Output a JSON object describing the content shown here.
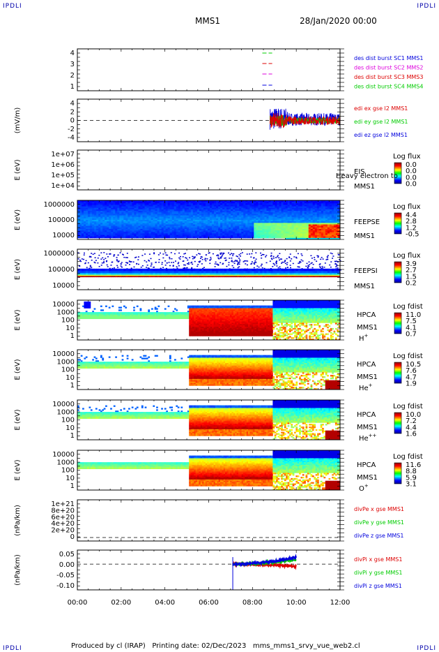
{
  "corner_label": "IPDLI",
  "title": "MMS1",
  "date": "28/Jan/2020 00:00",
  "footer": "Produced by cl (IRAP)   Printing date: 02/Dec/2023   mms_mms1_srvy_vue_web2.cl",
  "x_ticks": [
    "00:00",
    "02:00",
    "04:00",
    "06:00",
    "08:00",
    "10:00",
    "12:00"
  ],
  "panels": [
    {
      "type": "timeline",
      "yticks": [
        "4",
        "3",
        "2",
        "1"
      ],
      "legend": [
        {
          "text": "des dist burst SC1 MMS1",
          "color": "#0000dd"
        },
        {
          "text": "des dist burst SC2 MMS2",
          "color": "#dd00dd"
        },
        {
          "text": "des dist burst SC3 MMS3",
          "color": "#dd0000"
        },
        {
          "text": "des dist burst SC4 MMS4",
          "color": "#00cc00"
        }
      ]
    },
    {
      "type": "line",
      "ylabel": "(mV/m)",
      "yticks": [
        "4",
        "2",
        "0",
        "-2",
        "-4"
      ],
      "ylim": [
        -4,
        4
      ],
      "legend": [
        {
          "text": "edi ex gse l2 MMS1",
          "color": "#dd0000"
        },
        {
          "text": "edi ey gse l2 MMS1",
          "color": "#00cc00"
        },
        {
          "text": "edi ez gse l2 MMS1",
          "color": "#0000dd"
        }
      ]
    },
    {
      "type": "spectrogram",
      "ylabel": "E (eV)",
      "yticks": [
        "1e+07",
        "1e+06",
        "1e+05",
        "1e+04"
      ],
      "labels": [
        "EIS",
        "MMS1"
      ],
      "overlay": "Heavy electron to",
      "cbar_title": "Log flux",
      "cbar_ticks": [
        "0.0",
        "0.0",
        "0.0",
        "0.0"
      ]
    },
    {
      "type": "spectrogram",
      "ylabel": "E (eV)",
      "yticks": [
        "1000000",
        "100000",
        "10000"
      ],
      "labels": [
        "FEEPSE",
        "MMS1"
      ],
      "cbar_title": "Log flux",
      "cbar_ticks": [
        "4.4",
        "2.8",
        "1.2",
        "-0.5"
      ]
    },
    {
      "type": "spectrogram",
      "ylabel": "E (eV)",
      "yticks": [
        "1000000",
        "100000",
        "10000"
      ],
      "labels": [
        "FEEPSI",
        "MMS1"
      ],
      "cbar_title": "Log flux",
      "cbar_ticks": [
        "3.9",
        "2.7",
        "1.5",
        "0.2"
      ]
    },
    {
      "type": "spectrogram",
      "ylabel": "E (eV)",
      "yticks": [
        "10000",
        "1000",
        "100",
        "10",
        "1"
      ],
      "labels": [
        "HPCA",
        "MMS1"
      ],
      "species": "H",
      "sup": "+",
      "cbar_title": "Log fdist",
      "cbar_ticks": [
        "11.0",
        "7.5",
        "4.1",
        "0.7"
      ]
    },
    {
      "type": "spectrogram",
      "ylabel": "E (eV)",
      "yticks": [
        "10000",
        "1000",
        "100",
        "10",
        "1"
      ],
      "labels": [
        "HPCA",
        "MMS1"
      ],
      "species": "He",
      "sup": "+",
      "cbar_title": "Log fdist",
      "cbar_ticks": [
        "10.5",
        "7.6",
        "4.7",
        "1.9"
      ]
    },
    {
      "type": "spectrogram",
      "ylabel": "E (eV)",
      "yticks": [
        "10000",
        "1000",
        "100",
        "10",
        "1"
      ],
      "labels": [
        "HPCA",
        "MMS1"
      ],
      "species": "He",
      "sup": "++",
      "cbar_title": "Log fdist",
      "cbar_ticks": [
        "10.0",
        "7.2",
        "4.4",
        "1.6"
      ]
    },
    {
      "type": "spectrogram",
      "ylabel": "E (eV)",
      "yticks": [
        "10000",
        "1000",
        "100",
        "10",
        "1"
      ],
      "labels": [
        "HPCA",
        "MMS1"
      ],
      "species": "O",
      "sup": "+",
      "cbar_title": "Log fdist",
      "cbar_ticks": [
        "11.6",
        "8.8",
        "5.9",
        "3.1"
      ]
    },
    {
      "type": "line",
      "ylabel": "(nPa/km)",
      "yticks": [
        "1e+21",
        "8e+20",
        "6e+20",
        "4e+20",
        "2e+20",
        "0"
      ],
      "ylim": [
        0,
        1e+21
      ],
      "legend": [
        {
          "text": "divPe x gse MMS1",
          "color": "#dd0000"
        },
        {
          "text": "divPe y gse MMS1",
          "color": "#00cc00"
        },
        {
          "text": "divPe z gse MMS1",
          "color": "#0000dd"
        }
      ]
    },
    {
      "type": "line",
      "ylabel": "(nPa/km)",
      "yticks": [
        "0.05",
        "0.00",
        "-0.05",
        "-0.10"
      ],
      "ylim": [
        -0.11,
        0.06
      ],
      "legend": [
        {
          "text": "divPi x gse MMS1",
          "color": "#dd0000"
        },
        {
          "text": "divPi y gse MMS1",
          "color": "#00cc00"
        },
        {
          "text": "divPi z gse MMS1",
          "color": "#0000dd"
        }
      ]
    }
  ],
  "chart_data": {
    "type": "line",
    "title": "MMS1",
    "x_range_hours": [
      0,
      12
    ],
    "burst_intervals": [
      {
        "spacecraft": 4,
        "start_h": 8.45,
        "end_h": 8.9
      },
      {
        "spacecraft": 3,
        "start_h": 8.45,
        "end_h": 8.9
      },
      {
        "spacecraft": 2,
        "start_h": 8.45,
        "end_h": 8.9
      },
      {
        "spacecraft": 1,
        "start_h": 8.45,
        "end_h": 8.9
      }
    ],
    "edi_field_mV_m": {
      "start_h": 8.8,
      "end_h": 12.0,
      "ex_range": [
        -2,
        2
      ],
      "ey_range": [
        -1.5,
        1.5
      ],
      "ez_range": [
        -2.5,
        3.5
      ]
    },
    "divPi_nPa_km": {
      "start_h": 7.1,
      "end_h": 10.0,
      "x_end_value": -0.01,
      "y_end_value": 0.02,
      "z_end_value": 0.03,
      "z_spike_min": -0.11
    },
    "hpca_boundary_h": 5.1,
    "hpca_second_boundary_h": 8.9
  }
}
